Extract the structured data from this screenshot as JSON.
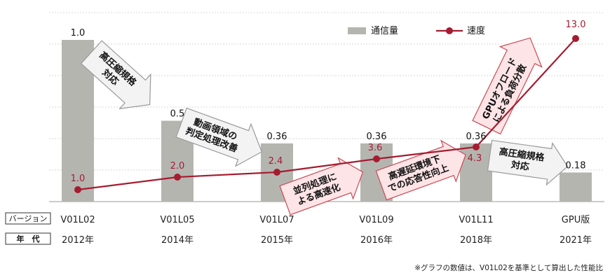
{
  "chart_data": {
    "type": "bar+line",
    "categories": [
      "V01L02",
      "V01L05",
      "V01L07",
      "V01L09",
      "V01L11",
      "GPU版"
    ],
    "years": [
      "2012年",
      "2014年",
      "2015年",
      "2016年",
      "2018年",
      "2021年"
    ],
    "row_labels": {
      "version": "バージョン",
      "year": "年　代"
    },
    "series": [
      {
        "name": "通信量",
        "type": "bar",
        "color": "#b5b5b0",
        "values": [
          1.0,
          0.5,
          0.36,
          0.36,
          0.36,
          0.18
        ],
        "labels": [
          "1.0",
          "0.5",
          "0.36",
          "0.36",
          "0.36",
          "0.18"
        ]
      },
      {
        "name": "速度",
        "type": "line",
        "color": "#a51c30",
        "values": [
          1.0,
          2.0,
          2.4,
          3.6,
          4.3,
          13.0
        ],
        "labels": [
          "1.0",
          "2.0",
          "2.4",
          "3.6",
          "4.3",
          "13.0"
        ]
      }
    ],
    "legend_position": "top-right",
    "grid": true,
    "ylim_bar": [
      0,
      1.2
    ],
    "callouts": [
      {
        "lines": [
          "高圧縮規格",
          "対応"
        ],
        "style": "gray"
      },
      {
        "lines": [
          "動画領域の",
          "判定処理改善"
        ],
        "style": "gray"
      },
      {
        "lines": [
          "並列処理に",
          "よる高速化"
        ],
        "style": "pink"
      },
      {
        "lines": [
          "高遅延環境下",
          "での応答性向上"
        ],
        "style": "pink"
      },
      {
        "lines": [
          "GPUオフロード",
          "による負荷分散"
        ],
        "style": "pink"
      },
      {
        "lines": [
          "高圧縮規格",
          "対応"
        ],
        "style": "gray"
      }
    ],
    "footnote": "※グラフの数値は、V01L02を基準として算出した性能比"
  }
}
